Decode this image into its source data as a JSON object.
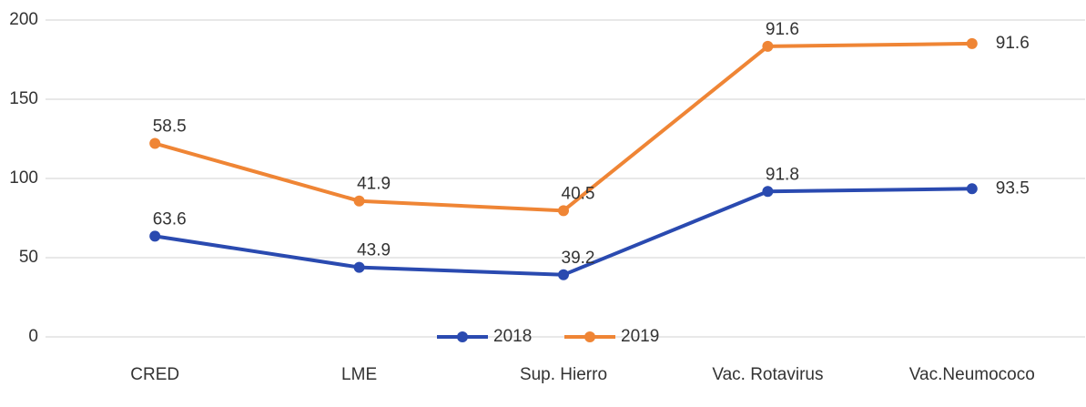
{
  "chart_data": {
    "type": "line",
    "stacked": true,
    "categories": [
      "CRED",
      "LME",
      "Sup. Hierro",
      "Vac. Rotavirus",
      "Vac.Neumococo"
    ],
    "series": [
      {
        "name": "2018",
        "color": "#2a4ab0",
        "values": [
          63.6,
          43.9,
          39.2,
          91.8,
          93.5
        ]
      },
      {
        "name": "2019",
        "color": "#ef8535",
        "values": [
          58.5,
          41.9,
          40.5,
          91.6,
          91.6
        ]
      }
    ],
    "ylim": [
      0,
      200
    ],
    "yticks": [
      0,
      50,
      100,
      150,
      200
    ],
    "grid": true,
    "legend": "bottom"
  }
}
